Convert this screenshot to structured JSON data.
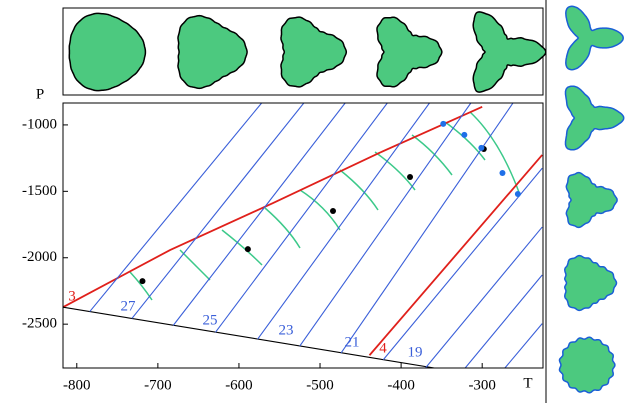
{
  "chart_data": {
    "type": "line",
    "xlabel": "T",
    "ylabel": "P",
    "xlim": [
      -817,
      -225
    ],
    "ylim": [
      -2830,
      -835
    ],
    "xticks": [
      -800,
      -700,
      -600,
      -500,
      -400,
      -300
    ],
    "yticks": [
      -1000,
      -1500,
      -2000,
      -2500
    ],
    "series": [
      {
        "name": "3",
        "color": "#e0201b",
        "x": [
          -817,
          -685,
          -558,
          -427,
          -300
        ],
        "values": [
          -2372,
          -1942,
          -1588,
          -1211,
          -864
        ]
      },
      {
        "name": "4",
        "color": "#e0201b",
        "x": [
          -439,
          -226
        ],
        "values": [
          -2734,
          -1226
        ]
      },
      {
        "color": "#000000",
        "x": [
          -817,
          -359
        ],
        "values": [
          -2372,
          -2830
        ]
      },
      {
        "color": "#3a5fd9",
        "x": [
          -784,
          -572
        ],
        "values": [
          -2405,
          -835
        ]
      },
      {
        "name": "27",
        "color": "#3a5fd9",
        "x": [
          -732,
          -520
        ],
        "values": [
          -2457,
          -835
        ]
      },
      {
        "color": "#3a5fd9",
        "x": [
          -681,
          -469
        ],
        "values": [
          -2509,
          -835
        ]
      },
      {
        "name": "25",
        "color": "#3a5fd9",
        "x": [
          -629,
          -417
        ],
        "values": [
          -2561,
          -835
        ]
      },
      {
        "color": "#3a5fd9",
        "x": [
          -577,
          -365
        ],
        "values": [
          -2613,
          -835
        ]
      },
      {
        "name": "23",
        "color": "#3a5fd9",
        "x": [
          -525,
          -314
        ],
        "values": [
          -2665,
          -835
        ]
      },
      {
        "color": "#3a5fd9",
        "x": [
          -474,
          -262
        ],
        "values": [
          -2717,
          -835
        ]
      },
      {
        "name": "21",
        "color": "#3a5fd9",
        "x": [
          -422,
          -226
        ],
        "values": [
          -2768,
          -1326
        ]
      },
      {
        "color": "#3a5fd9",
        "x": [
          -370,
          -226
        ],
        "values": [
          -2830,
          -1769
        ]
      },
      {
        "name": "19",
        "color": "#3a5fd9",
        "x": [
          -321,
          -226
        ],
        "values": [
          -2830,
          -2130
        ]
      },
      {
        "color": "#3a5fd9",
        "x": [
          -272,
          -226
        ],
        "values": [
          -2830,
          -2496
        ]
      },
      {
        "mode": "markers",
        "color": "#000000",
        "x": [
          -719,
          -589,
          -484,
          -389,
          -298
        ],
        "values": [
          -2176,
          -1935,
          -1648,
          -1392,
          -1181
        ]
      },
      {
        "mode": "markers",
        "color": "#1f6fe8",
        "x": [
          -348,
          -322,
          -301,
          -275,
          -256
        ],
        "values": [
          -992,
          -1075,
          -1173,
          -1362,
          -1520
        ]
      }
    ]
  }
}
